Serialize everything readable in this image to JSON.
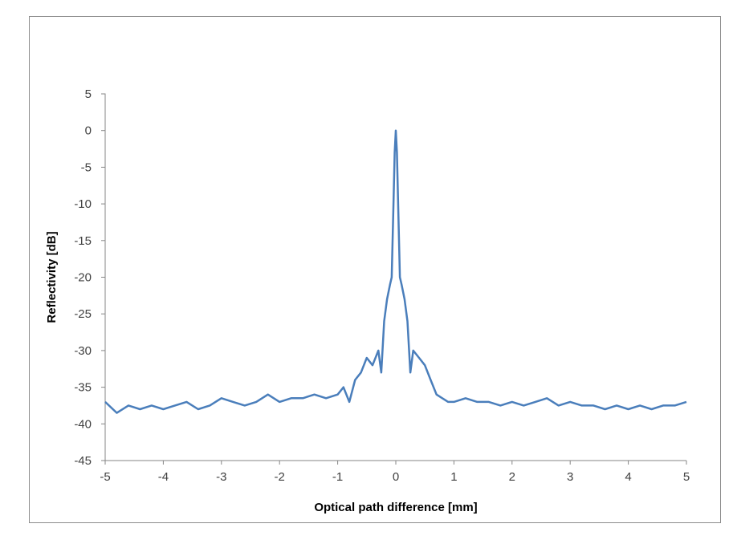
{
  "chart_data": {
    "type": "line",
    "title": "",
    "xlabel": "Optical path difference [mm]",
    "ylabel": "Reflectivity [dB]",
    "xlim": [
      -5,
      5
    ],
    "ylim": [
      -45,
      5
    ],
    "xticks": [
      "-5",
      "-4",
      "-3",
      "-2",
      "-1",
      "0",
      "1",
      "2",
      "3",
      "4",
      "5"
    ],
    "yticks": [
      "5",
      "0",
      "-5",
      "-10",
      "-15",
      "-20",
      "-25",
      "-30",
      "-35",
      "-40",
      "-45"
    ],
    "grid": false,
    "legend": "none",
    "series": [
      {
        "color": "#4a7ebb",
        "x": [
          -5.0,
          -4.8,
          -4.6,
          -4.4,
          -4.2,
          -4.0,
          -3.8,
          -3.6,
          -3.4,
          -3.2,
          -3.0,
          -2.8,
          -2.6,
          -2.4,
          -2.2,
          -2.0,
          -1.8,
          -1.6,
          -1.4,
          -1.2,
          -1.0,
          -0.9,
          -0.8,
          -0.7,
          -0.6,
          -0.5,
          -0.4,
          -0.3,
          -0.25,
          -0.2,
          -0.15,
          -0.1,
          -0.07,
          -0.04,
          -0.02,
          0.0,
          0.02,
          0.04,
          0.07,
          0.1,
          0.15,
          0.2,
          0.25,
          0.3,
          0.4,
          0.5,
          0.6,
          0.7,
          0.8,
          0.9,
          1.0,
          1.2,
          1.4,
          1.6,
          1.8,
          2.0,
          2.2,
          2.4,
          2.6,
          2.8,
          3.0,
          3.2,
          3.4,
          3.6,
          3.8,
          4.0,
          4.2,
          4.4,
          4.6,
          4.8,
          5.0
        ],
        "y": [
          -37,
          -38.5,
          -37.5,
          -38,
          -37.5,
          -38,
          -37.5,
          -37,
          -38,
          -37.5,
          -36.5,
          -37,
          -37.5,
          -37,
          -36,
          -37,
          -36.5,
          -36.5,
          -36,
          -36.5,
          -36,
          -35,
          -37,
          -34,
          -33,
          -31,
          -32,
          -30,
          -33,
          -26,
          -23,
          -21,
          -20,
          -10,
          -3,
          0,
          -3,
          -10,
          -20,
          -21,
          -23,
          -26,
          -33,
          -30,
          -31,
          -32,
          -34,
          -36,
          -36.5,
          -37,
          -37,
          -36.5,
          -37,
          -37,
          -37.5,
          -37,
          -37.5,
          -37,
          -36.5,
          -37.5,
          -37,
          -37.5,
          -37.5,
          -38,
          -37.5,
          -38,
          -37.5,
          -38,
          -37.5,
          -37.5,
          -37
        ]
      }
    ]
  }
}
